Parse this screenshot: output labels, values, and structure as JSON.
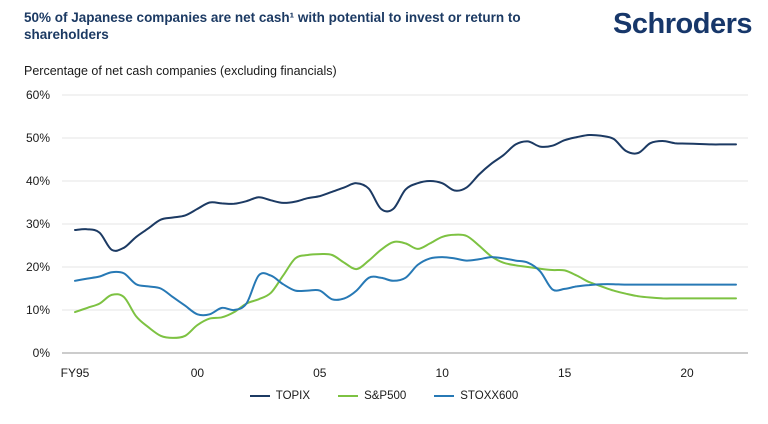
{
  "header": {
    "title": "50% of Japanese companies are net cash¹ with potential to invest or return to shareholders",
    "logo": "Schroders"
  },
  "colors": {
    "TOPIX": "#1c3a63",
    "S&P500": "#7dc242",
    "STOXX600": "#2779b5",
    "grid": "#e6e6e6",
    "axis": "#9a9a9a"
  },
  "chart_data": {
    "type": "line",
    "subtitle": "Percentage of net cash companies (excluding financials)",
    "ylim": [
      0,
      60
    ],
    "yticks": [
      0,
      10,
      20,
      30,
      40,
      50,
      60
    ],
    "ytick_labels": [
      "0%",
      "10%",
      "20%",
      "30%",
      "40%",
      "50%",
      "60%"
    ],
    "xlim": [
      1995,
      2022
    ],
    "xticks": [
      1995,
      2000,
      2005,
      2010,
      2015,
      2020
    ],
    "xtick_labels": [
      "FY95",
      "00",
      "05",
      "10",
      "15",
      "20"
    ],
    "grid": true,
    "legend_position": "bottom-center",
    "x": [
      1995,
      1995.5,
      1996,
      1996.5,
      1997,
      1997.5,
      1998,
      1998.5,
      1999,
      1999.5,
      2000,
      2000.5,
      2001,
      2001.5,
      2002,
      2002.5,
      2003,
      2003.5,
      2004,
      2004.5,
      2005,
      2005.5,
      2006,
      2006.5,
      2007,
      2007.5,
      2008,
      2008.5,
      2009,
      2009.5,
      2010,
      2010.5,
      2011,
      2011.5,
      2012,
      2012.5,
      2013,
      2013.5,
      2014,
      2014.5,
      2015,
      2015.5,
      2016,
      2016.5,
      2017,
      2017.5,
      2018,
      2018.5,
      2019,
      2019.5,
      2020,
      2020.5,
      2021,
      2021.5,
      2022
    ],
    "series": [
      {
        "name": "TOPIX",
        "values": [
          28.6,
          28.8,
          28.0,
          24.0,
          24.5,
          27.0,
          29.0,
          31.0,
          31.5,
          32.0,
          33.5,
          35.0,
          34.8,
          34.7,
          35.3,
          36.2,
          35.5,
          34.9,
          35.2,
          36.0,
          36.5,
          37.5,
          38.5,
          39.5,
          38.2,
          33.5,
          33.5,
          38.0,
          39.5,
          40.0,
          39.5,
          37.8,
          38.5,
          41.5,
          44.0,
          46.0,
          48.5,
          49.2,
          48.0,
          48.2,
          49.5,
          50.2,
          50.7,
          50.5,
          49.8,
          47.0,
          46.5,
          48.8,
          49.3,
          48.8,
          48.7,
          48.6,
          48.5,
          48.5,
          48.5
        ],
        "color": "#1c3a63"
      },
      {
        "name": "S&P500",
        "values": [
          9.5,
          10.5,
          11.5,
          13.5,
          13.0,
          8.5,
          6.0,
          4.0,
          3.5,
          4.0,
          6.5,
          8.0,
          8.3,
          9.5,
          11.5,
          12.5,
          14.0,
          18.0,
          22.0,
          22.8,
          23.0,
          22.8,
          21.0,
          19.5,
          21.5,
          24.0,
          25.8,
          25.5,
          24.2,
          25.5,
          27.0,
          27.5,
          27.2,
          25.0,
          22.5,
          21.0,
          20.4,
          20.0,
          19.6,
          19.3,
          19.2,
          18.0,
          16.5,
          15.5,
          14.5,
          13.8,
          13.2,
          12.9,
          12.7,
          12.7,
          12.7,
          12.7,
          12.7,
          12.7,
          12.7
        ],
        "color": "#7dc242"
      },
      {
        "name": "STOXX600",
        "values": [
          16.8,
          17.3,
          17.8,
          18.8,
          18.5,
          16.0,
          15.5,
          15.0,
          13.0,
          11.0,
          9.0,
          9.0,
          10.5,
          10.0,
          11.5,
          18.0,
          18.0,
          16.0,
          14.5,
          14.5,
          14.5,
          12.5,
          12.7,
          14.5,
          17.5,
          17.5,
          16.8,
          17.5,
          20.5,
          22.0,
          22.3,
          22.0,
          21.5,
          21.8,
          22.3,
          22.0,
          21.5,
          21.0,
          19.0,
          14.8,
          14.9,
          15.5,
          15.8,
          16.0,
          16.0,
          15.9,
          15.9,
          15.9,
          15.9,
          15.9,
          15.9,
          15.9,
          15.9,
          15.9,
          15.9
        ],
        "color": "#2779b5"
      }
    ]
  }
}
